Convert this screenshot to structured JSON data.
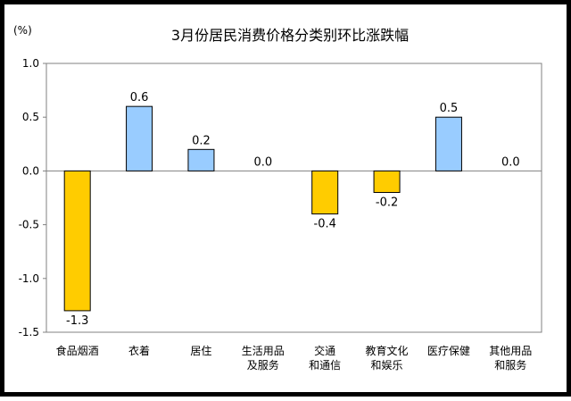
{
  "chart_data": {
    "type": "bar",
    "title": "3月份居民消费价格分类别环比涨跌幅",
    "unit_label": "(%)",
    "ylim": [
      -1.5,
      1.0
    ],
    "yticks": [
      "1.0",
      "0.5",
      "0.0",
      "-0.5",
      "-1.0",
      "-1.5"
    ],
    "ytick_values": [
      1.0,
      0.5,
      0.0,
      -0.5,
      -1.0,
      -1.5
    ],
    "grid": false,
    "categories": [
      [
        "食品烟酒"
      ],
      [
        "衣着"
      ],
      [
        "居住"
      ],
      [
        "生活用品",
        "及服务"
      ],
      [
        "交通",
        "和通信"
      ],
      [
        "教育文化",
        "和娱乐"
      ],
      [
        "医疗保健"
      ],
      [
        "其他用品",
        "和服务"
      ]
    ],
    "values": [
      -1.3,
      0.6,
      0.2,
      0.0,
      -0.4,
      -0.2,
      0.5,
      0.0
    ],
    "value_labels": [
      "-1.3",
      "0.6",
      "0.2",
      "0.0",
      "-0.4",
      "-0.2",
      "0.5",
      "0.0"
    ],
    "colors": {
      "positive": "#99ccff",
      "negative": "#ffcc00",
      "outline": "#000000"
    }
  }
}
